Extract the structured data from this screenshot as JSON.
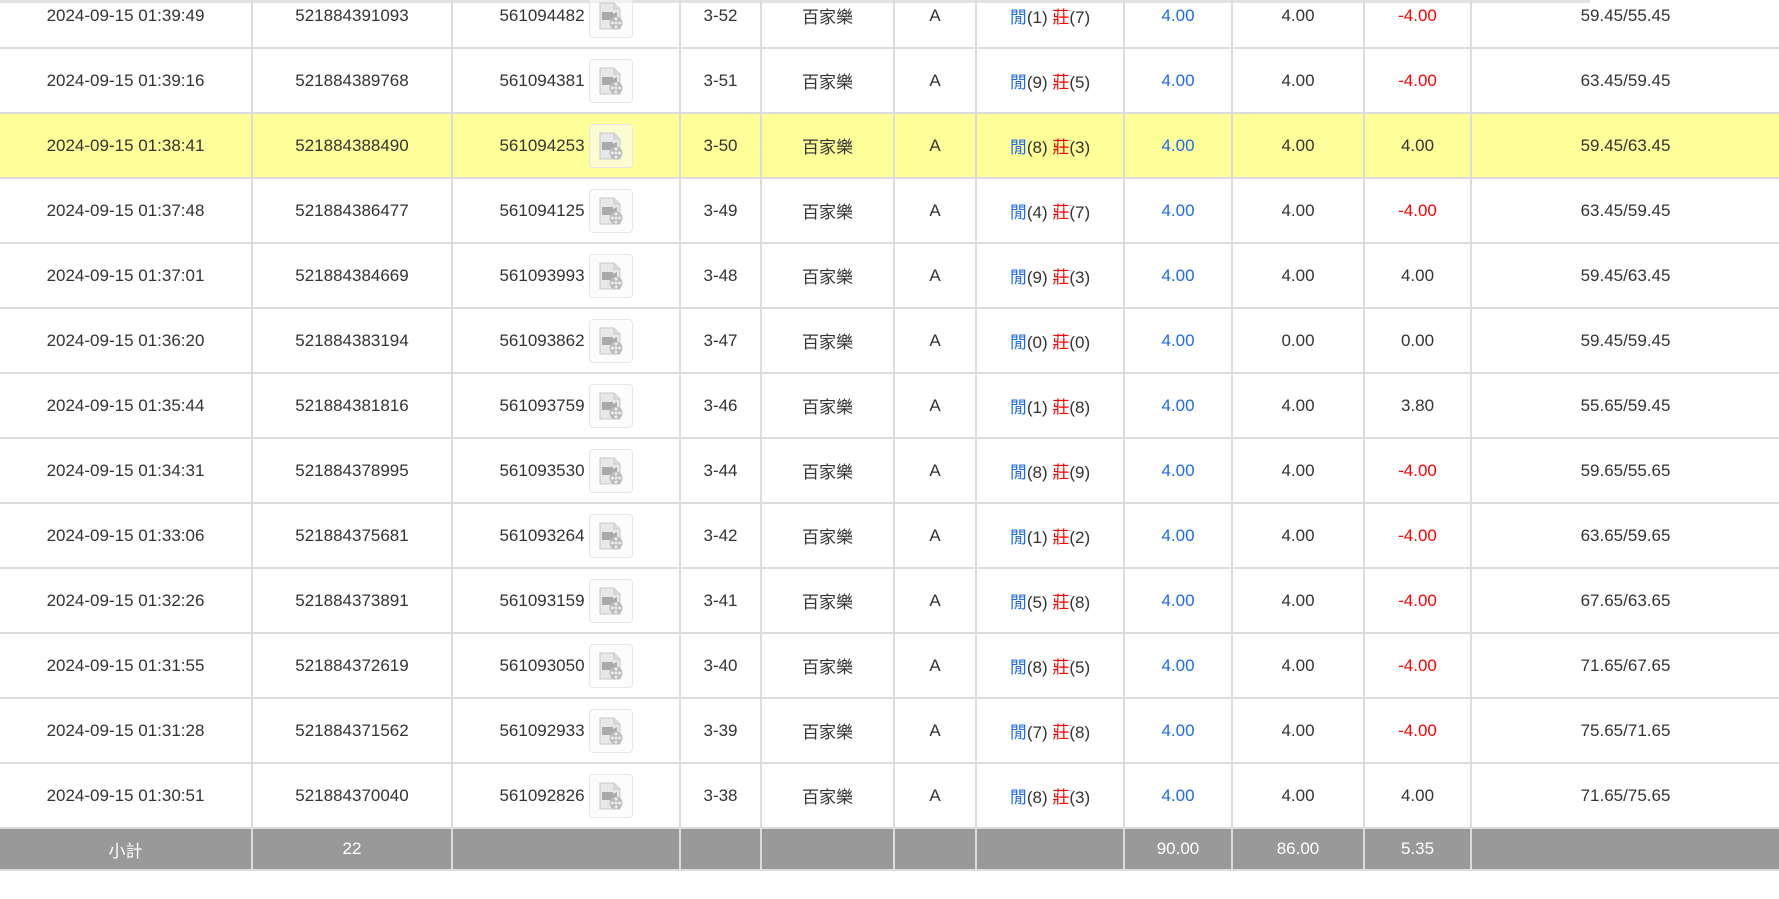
{
  "rows": [
    {
      "time": "2024-09-15 01:39:49",
      "bet_id": "521884391093",
      "round_id": "561094482",
      "shoe": "3-52",
      "game": "百家樂",
      "table": "A",
      "player_label": "閒",
      "player_score": "(1)",
      "banker_label": "莊",
      "banker_score": "(7)",
      "bet": "4.00",
      "valid": "4.00",
      "win": "-4.00",
      "balance": "59.45/55.45",
      "highlight": false
    },
    {
      "time": "2024-09-15 01:39:16",
      "bet_id": "521884389768",
      "round_id": "561094381",
      "shoe": "3-51",
      "game": "百家樂",
      "table": "A",
      "player_label": "閒",
      "player_score": "(9)",
      "banker_label": "莊",
      "banker_score": "(5)",
      "bet": "4.00",
      "valid": "4.00",
      "win": "-4.00",
      "balance": "63.45/59.45",
      "highlight": false
    },
    {
      "time": "2024-09-15 01:38:41",
      "bet_id": "521884388490",
      "round_id": "561094253",
      "shoe": "3-50",
      "game": "百家樂",
      "table": "A",
      "player_label": "閒",
      "player_score": "(8)",
      "banker_label": "莊",
      "banker_score": "(3)",
      "bet": "4.00",
      "valid": "4.00",
      "win": "4.00",
      "balance": "59.45/63.45",
      "highlight": true
    },
    {
      "time": "2024-09-15 01:37:48",
      "bet_id": "521884386477",
      "round_id": "561094125",
      "shoe": "3-49",
      "game": "百家樂",
      "table": "A",
      "player_label": "閒",
      "player_score": "(4)",
      "banker_label": "莊",
      "banker_score": "(7)",
      "bet": "4.00",
      "valid": "4.00",
      "win": "-4.00",
      "balance": "63.45/59.45",
      "highlight": false
    },
    {
      "time": "2024-09-15 01:37:01",
      "bet_id": "521884384669",
      "round_id": "561093993",
      "shoe": "3-48",
      "game": "百家樂",
      "table": "A",
      "player_label": "閒",
      "player_score": "(9)",
      "banker_label": "莊",
      "banker_score": "(3)",
      "bet": "4.00",
      "valid": "4.00",
      "win": "4.00",
      "balance": "59.45/63.45",
      "highlight": false
    },
    {
      "time": "2024-09-15 01:36:20",
      "bet_id": "521884383194",
      "round_id": "561093862",
      "shoe": "3-47",
      "game": "百家樂",
      "table": "A",
      "player_label": "閒",
      "player_score": "(0)",
      "banker_label": "莊",
      "banker_score": "(0)",
      "bet": "4.00",
      "valid": "0.00",
      "win": "0.00",
      "balance": "59.45/59.45",
      "highlight": false
    },
    {
      "time": "2024-09-15 01:35:44",
      "bet_id": "521884381816",
      "round_id": "561093759",
      "shoe": "3-46",
      "game": "百家樂",
      "table": "A",
      "player_label": "閒",
      "player_score": "(1)",
      "banker_label": "莊",
      "banker_score": "(8)",
      "bet": "4.00",
      "valid": "4.00",
      "win": "3.80",
      "balance": "55.65/59.45",
      "highlight": false
    },
    {
      "time": "2024-09-15 01:34:31",
      "bet_id": "521884378995",
      "round_id": "561093530",
      "shoe": "3-44",
      "game": "百家樂",
      "table": "A",
      "player_label": "閒",
      "player_score": "(8)",
      "banker_label": "莊",
      "banker_score": "(9)",
      "bet": "4.00",
      "valid": "4.00",
      "win": "-4.00",
      "balance": "59.65/55.65",
      "highlight": false
    },
    {
      "time": "2024-09-15 01:33:06",
      "bet_id": "521884375681",
      "round_id": "561093264",
      "shoe": "3-42",
      "game": "百家樂",
      "table": "A",
      "player_label": "閒",
      "player_score": "(1)",
      "banker_label": "莊",
      "banker_score": "(2)",
      "bet": "4.00",
      "valid": "4.00",
      "win": "-4.00",
      "balance": "63.65/59.65",
      "highlight": false
    },
    {
      "time": "2024-09-15 01:32:26",
      "bet_id": "521884373891",
      "round_id": "561093159",
      "shoe": "3-41",
      "game": "百家樂",
      "table": "A",
      "player_label": "閒",
      "player_score": "(5)",
      "banker_label": "莊",
      "banker_score": "(8)",
      "bet": "4.00",
      "valid": "4.00",
      "win": "-4.00",
      "balance": "67.65/63.65",
      "highlight": false
    },
    {
      "time": "2024-09-15 01:31:55",
      "bet_id": "521884372619",
      "round_id": "561093050",
      "shoe": "3-40",
      "game": "百家樂",
      "table": "A",
      "player_label": "閒",
      "player_score": "(8)",
      "banker_label": "莊",
      "banker_score": "(5)",
      "bet": "4.00",
      "valid": "4.00",
      "win": "-4.00",
      "balance": "71.65/67.65",
      "highlight": false
    },
    {
      "time": "2024-09-15 01:31:28",
      "bet_id": "521884371562",
      "round_id": "561092933",
      "shoe": "3-39",
      "game": "百家樂",
      "table": "A",
      "player_label": "閒",
      "player_score": "(7)",
      "banker_label": "莊",
      "banker_score": "(8)",
      "bet": "4.00",
      "valid": "4.00",
      "win": "-4.00",
      "balance": "75.65/71.65",
      "highlight": false
    },
    {
      "time": "2024-09-15 01:30:51",
      "bet_id": "521884370040",
      "round_id": "561092826",
      "shoe": "3-38",
      "game": "百家樂",
      "table": "A",
      "player_label": "閒",
      "player_score": "(8)",
      "banker_label": "莊",
      "banker_score": "(3)",
      "bet": "4.00",
      "valid": "4.00",
      "win": "4.00",
      "balance": "71.65/75.65",
      "highlight": false
    }
  ],
  "footer": {
    "label": "小計",
    "count": "22",
    "bet_total": "90.00",
    "valid_total": "86.00",
    "win_total": "5.35"
  },
  "colors": {
    "player": "#1c6bf0",
    "banker": "#ff0000",
    "negative": "#ff0000",
    "highlight": "#ffff99",
    "footer_bg": "#999999"
  },
  "icons": {
    "replay": "video-file-icon"
  }
}
